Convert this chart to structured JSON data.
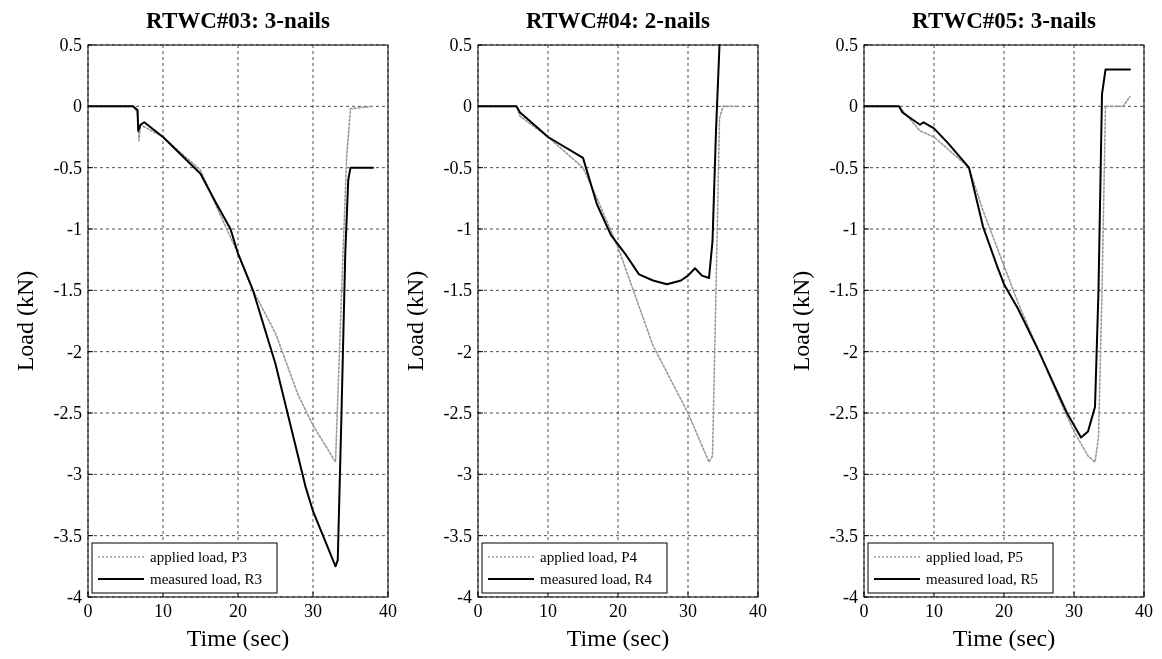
{
  "chart_data": [
    {
      "type": "line",
      "title": "RTWC#03: 3-nails",
      "xlabel": "Time (sec)",
      "ylabel": "Load (kN)",
      "xlim": [
        0,
        40
      ],
      "xticks": [
        0,
        10,
        20,
        30,
        40
      ],
      "ylim": [
        -4,
        0.5
      ],
      "yticks": [
        -4,
        -3.5,
        -3,
        -2.5,
        -2,
        -1.5,
        -1,
        -0.5,
        0,
        0.5
      ],
      "grid": true,
      "legend": "bottom left",
      "series": [
        {
          "name": "applied load, P3",
          "color": "#999999",
          "line_style": "dotted",
          "x": [
            0,
            6,
            6.6,
            6.8,
            7,
            10,
            15,
            17,
            20,
            22,
            25,
            28,
            30,
            33,
            34,
            34.5,
            35,
            38
          ],
          "values": [
            0,
            0,
            -0.05,
            -0.28,
            -0.15,
            -0.25,
            -0.52,
            -0.8,
            -1.2,
            -1.5,
            -1.85,
            -2.35,
            -2.6,
            -2.9,
            -1.2,
            -0.4,
            -0.02,
            0
          ]
        },
        {
          "name": "measured load, R3",
          "color": "#000000",
          "line_style": "solid",
          "x": [
            0,
            6,
            6.6,
            6.7,
            7,
            7.5,
            10,
            12,
            15,
            17,
            19,
            20,
            22,
            25,
            27,
            29,
            30,
            32,
            33,
            33.3,
            33.8,
            34.3,
            34.7,
            35,
            38
          ],
          "values": [
            0,
            0,
            -0.03,
            -0.2,
            -0.15,
            -0.13,
            -0.25,
            -0.37,
            -0.55,
            -0.78,
            -1,
            -1.2,
            -1.5,
            -2.1,
            -2.6,
            -3.1,
            -3.3,
            -3.6,
            -3.75,
            -3.7,
            -2.5,
            -1.2,
            -0.6,
            -0.5,
            -0.5
          ]
        }
      ]
    },
    {
      "type": "line",
      "title": "RTWC#04: 2-nails",
      "xlabel": "Time (sec)",
      "ylabel": "Load (kN)",
      "xlim": [
        0,
        40
      ],
      "xticks": [
        0,
        10,
        20,
        30,
        40
      ],
      "ylim": [
        -4,
        0.5
      ],
      "yticks": [
        -4,
        -3.5,
        -3,
        -2.5,
        -2,
        -1.5,
        -1,
        -0.5,
        0,
        0.5
      ],
      "grid": true,
      "legend": "bottom left",
      "series": [
        {
          "name": "applied load, P4",
          "color": "#999999",
          "line_style": "dotted",
          "x": [
            0,
            5.5,
            6,
            10,
            15,
            17,
            20,
            25,
            30,
            33,
            33.5,
            34,
            34.5,
            35,
            37
          ],
          "values": [
            0,
            0,
            -0.08,
            -0.25,
            -0.5,
            -0.75,
            -1.15,
            -1.95,
            -2.5,
            -2.9,
            -2.85,
            -1.5,
            -0.1,
            0,
            0
          ]
        },
        {
          "name": "measured load, R4",
          "color": "#000000",
          "line_style": "solid",
          "x": [
            0,
            5.5,
            6,
            7,
            9,
            10,
            15,
            17,
            19,
            21,
            23,
            25,
            27,
            29,
            30,
            31,
            32,
            33,
            33.5,
            34,
            34.5
          ],
          "values": [
            0,
            0,
            -0.05,
            -0.1,
            -0.2,
            -0.25,
            -0.42,
            -0.8,
            -1.05,
            -1.2,
            -1.37,
            -1.42,
            -1.45,
            -1.42,
            -1.38,
            -1.32,
            -1.38,
            -1.4,
            -1.1,
            -0.2,
            0.5
          ]
        }
      ]
    },
    {
      "type": "line",
      "title": "RTWC#05: 3-nails",
      "xlabel": "Time (sec)",
      "ylabel": "Load (kN)",
      "xlim": [
        0,
        40
      ],
      "xticks": [
        0,
        10,
        20,
        30,
        40
      ],
      "ylim": [
        -4,
        0.5
      ],
      "yticks": [
        -4,
        -3.5,
        -3,
        -2.5,
        -2,
        -1.5,
        -1,
        -0.5,
        0,
        0.5
      ],
      "grid": true,
      "legend": "bottom left",
      "series": [
        {
          "name": "applied load, P5",
          "color": "#999999",
          "line_style": "dotted",
          "x": [
            0,
            5,
            8,
            10,
            15,
            17,
            20,
            22,
            25,
            28,
            30,
            32,
            33,
            33.5,
            34,
            34.5,
            37,
            38
          ],
          "values": [
            0,
            0,
            -0.2,
            -0.25,
            -0.5,
            -0.85,
            -1.3,
            -1.6,
            -2,
            -2.4,
            -2.65,
            -2.85,
            -2.9,
            -2.7,
            -1.5,
            0,
            0,
            0.08
          ]
        },
        {
          "name": "measured load, R5",
          "color": "#000000",
          "line_style": "solid",
          "x": [
            0,
            5,
            5.5,
            8,
            8.5,
            10,
            12,
            15,
            17,
            19,
            20,
            22,
            25,
            27,
            29,
            30,
            31,
            32,
            33,
            33.5,
            34,
            34.5,
            38
          ],
          "values": [
            0,
            0,
            -0.05,
            -0.15,
            -0.13,
            -0.18,
            -0.3,
            -0.5,
            -0.98,
            -1.3,
            -1.45,
            -1.65,
            -2,
            -2.25,
            -2.5,
            -2.6,
            -2.7,
            -2.65,
            -2.45,
            -1.5,
            0.1,
            0.3,
            0.3
          ]
        }
      ]
    }
  ]
}
